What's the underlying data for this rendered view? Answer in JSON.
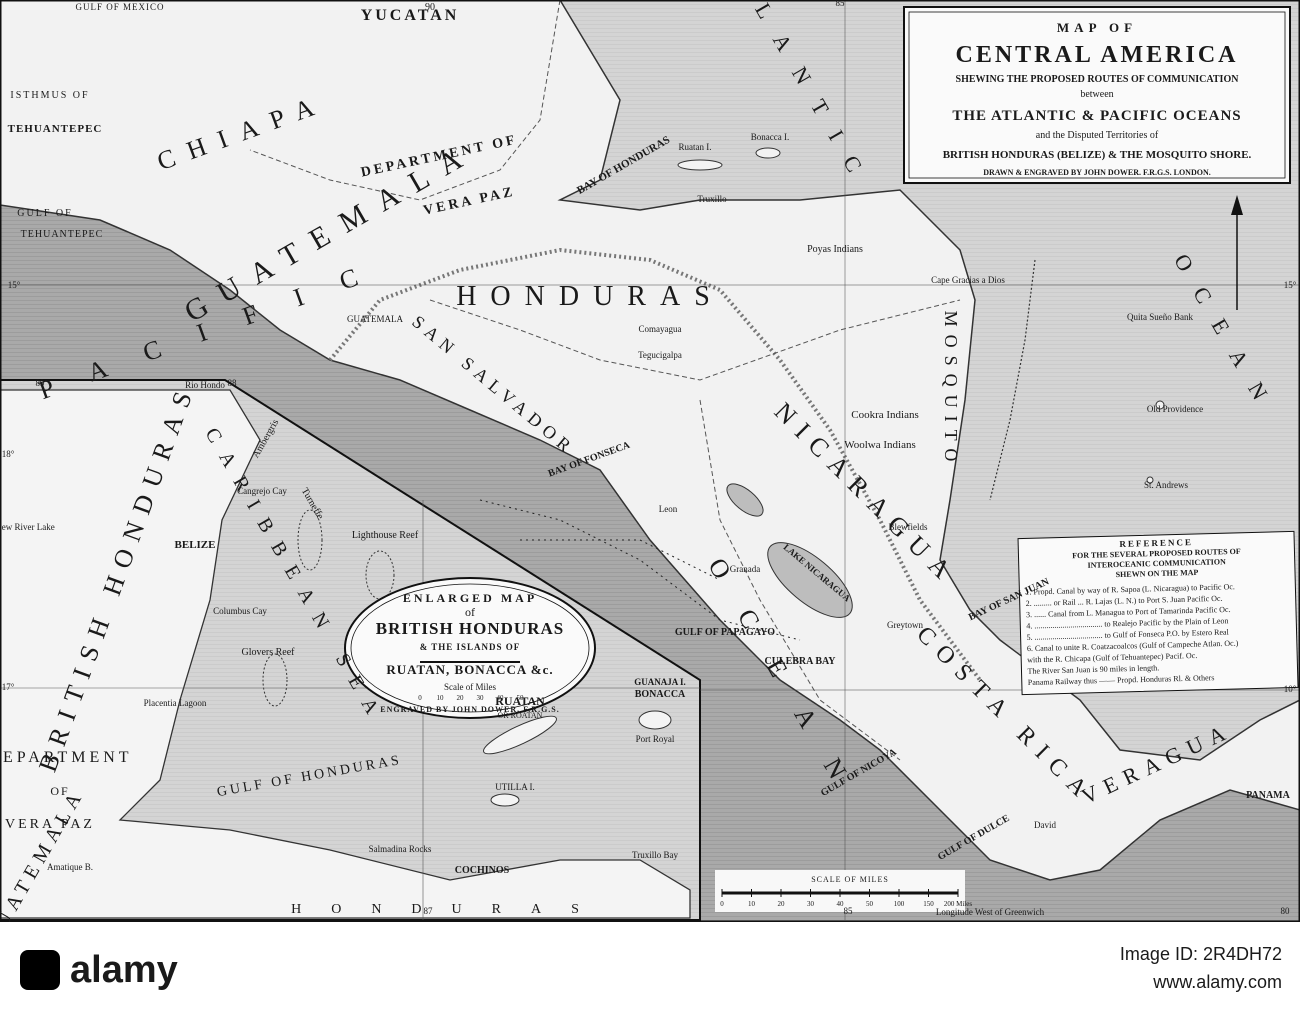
{
  "title_cartouche": {
    "lines": [
      "MAP OF",
      "CENTRAL AMERICA",
      "SHEWING THE PROPOSED ROUTES OF COMMUNICATION",
      "between",
      "THE ATLANTIC & PACIFIC OCEANS",
      "and the Disputed Territories of",
      "BRITISH HONDURAS (BELIZE) & THE MOSQUITO SHORE.",
      "DRAWN & ENGRAVED BY JOHN DOWER. F.R.G.S. LONDON."
    ]
  },
  "inset_cartouche": {
    "lines": [
      "ENLARGED MAP",
      "of",
      "BRITISH HONDURAS",
      "& THE ISLANDS OF",
      "RUATAN, BONACCA &c.",
      "Scale of Miles",
      "ENGRAVED BY JOHN DOWER, F.R.G.S."
    ],
    "scale_ticks": [
      "0",
      "10",
      "20",
      "30",
      "40",
      "50"
    ]
  },
  "reference": {
    "lines": [
      "REFERENCE",
      "FOR THE SEVERAL PROPOSED ROUTES OF",
      "INTEROCEANIC COMMUNICATION",
      "SHEWN ON THE MAP",
      "1. Propd. Canal by way of R. Sapoa (L. Nicaragua) to Pacific Oc.",
      "2. ......... or Rail ... R. Lajas (L. N.) to Port S. Juan Pacific Oc.",
      "3. ...... Canal from L. Managua to Port of Tamarinda Pacific Oc.",
      "4. .................................. to Realejo Pacific by the Plain of Leon",
      "5. .................................. to Gulf of Fonseca P.O. by Estero Real",
      "6. Canal to unite R. Coatzacoalcos (Gulf of Campeche Atlan. Oc.)",
      "with the R. Chicapa (Gulf of Tehuantepec) Pacif. Oc.",
      "The River San Juan is 90 miles in length.",
      "Panama Railway thus ——  Propd. Honduras Rl. & Others"
    ]
  },
  "labels": [
    "YUCATAN",
    "GULF OF MEXICO",
    "ISTHMUS OF",
    "TEHUANTEPEC",
    "GULF OF",
    "TEHUANTEPEC",
    "CHIAPA",
    "GUATEMALA",
    "DEPARTMENT OF",
    "VERA PAZ",
    "BAY OF HONDURAS",
    "HONDURAS",
    "SAN SALVADOR",
    "NICARAGUA",
    "MOSQUITO",
    "COSTA RICA",
    "VERAGUA",
    "PACIFIC",
    "OCEAN",
    "ATLANTIC",
    "OCEAN",
    "BAY OF SAN JUAN",
    "GULF OF PAPAGAYO",
    "CULEBRA BAY",
    "GULF OF NICOYA",
    "GULF OF DULCE",
    "BAY OF FONSECA",
    "GUATEMALA",
    "Comayagua",
    "Tegucigalpa",
    "Truxillo",
    "Ruatan I.",
    "Bonacca I.",
    "LAKE NICARAGUA",
    "Granada",
    "Leon",
    "Greytown",
    "Blewfields",
    "Cape Gracias a Dios",
    "Poyas Indians",
    "Woolwa Indians",
    "Cookra Indians",
    "Old Providence",
    "St. Andrews",
    "Quita Sueño Bank",
    "PANAMA",
    "David"
  ],
  "inset_labels": [
    "BRITISH HONDURAS",
    "DEPARTMENT",
    "OF",
    "VERA PAZ",
    "GUATEMALA",
    "BELIZE",
    "GULF OF HONDURAS",
    "CARIBBEAN SEA",
    "RUATAN",
    "OR ROATAN",
    "GUANAJA I.",
    "BONACCA",
    "UTILLA I.",
    "COCHINOS",
    "Truxillo Bay",
    "HONDURAS",
    "Lighthouse Reef",
    "Glovers Reef",
    "Turneffe",
    "Ambergris",
    "Rio Hondo",
    "New River Lake",
    "Cangrejo Cay",
    "Columbus Cay",
    "Salmadina Rocks",
    "Port Royal",
    "Placentia Lagoon",
    "Amatique B."
  ],
  "graticule": [
    "90",
    "85",
    "15°",
    "15°",
    "10°",
    "18°",
    "17°",
    "89",
    "88",
    "87",
    "85",
    "80"
  ],
  "scale": {
    "title": "SCALE OF MILES",
    "ticks": [
      "0",
      "10",
      "20",
      "30",
      "40",
      "50",
      "100",
      "150",
      "200 Miles"
    ],
    "note": "Longitude West of Greenwich"
  },
  "footer": {
    "logo": "alamy",
    "image_id": "Image ID: 2R4DH72",
    "url": "www.alamy.com"
  }
}
